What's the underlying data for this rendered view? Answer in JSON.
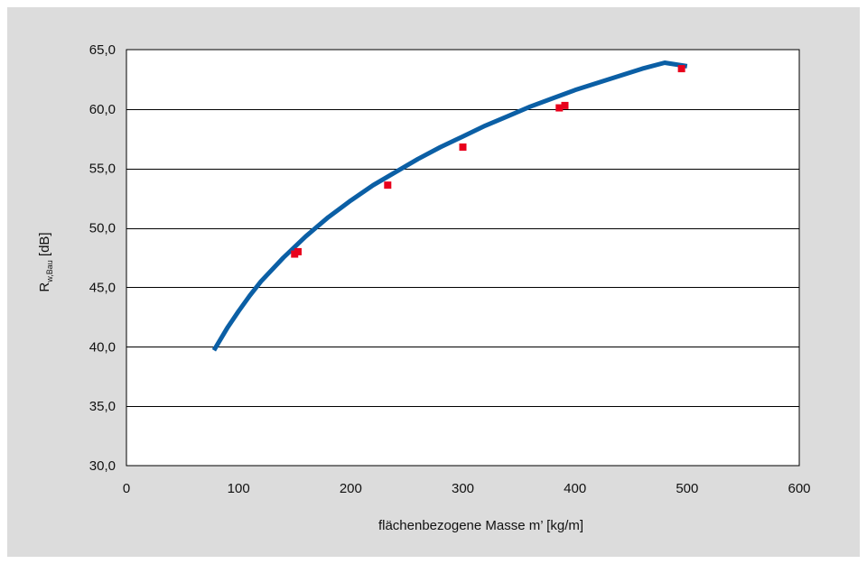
{
  "chart_data": {
    "type": "line",
    "title": "",
    "xlabel": "flächenbezogene Masse m’ [kg/m]",
    "ylabel": "R[dB]",
    "ylabel_parts": {
      "main": "R",
      "subscript": "w,Bau",
      "unit": " [dB]"
    },
    "xlim": [
      0,
      600
    ],
    "ylim": [
      30,
      65
    ],
    "x_ticks": [
      0,
      100,
      200,
      300,
      400,
      500,
      600
    ],
    "x_tick_labels": [
      "0",
      "100",
      "200",
      "300",
      "400",
      "500",
      "600"
    ],
    "y_ticks": [
      30,
      35,
      40,
      45,
      50,
      55,
      60,
      65
    ],
    "y_tick_labels": [
      "30,0",
      "35,0",
      "40,0",
      "45,0",
      "50,0",
      "55,0",
      "60,0",
      "65,0"
    ],
    "grid": "horizontal",
    "legend": "none",
    "series": [
      {
        "kind": "line",
        "color": "#0b5fa5",
        "x": [
          78,
          90,
          100,
          110,
          120,
          140,
          160,
          180,
          200,
          220,
          240,
          260,
          280,
          300,
          320,
          340,
          360,
          380,
          400,
          420,
          440,
          460,
          480,
          500
        ],
        "y": [
          39.7,
          41.6,
          43.0,
          44.3,
          45.5,
          47.5,
          49.3,
          50.9,
          52.3,
          53.6,
          54.7,
          55.8,
          56.8,
          57.7,
          58.6,
          59.4,
          60.2,
          60.9,
          61.6,
          62.2,
          62.8,
          63.4,
          63.9,
          63.6
        ]
      },
      {
        "kind": "markers",
        "color": "#e8001c",
        "x": [
          150,
          153,
          233,
          300,
          386,
          391,
          495
        ],
        "y": [
          47.8,
          48.0,
          53.6,
          56.8,
          60.1,
          60.3,
          63.4
        ]
      }
    ]
  }
}
